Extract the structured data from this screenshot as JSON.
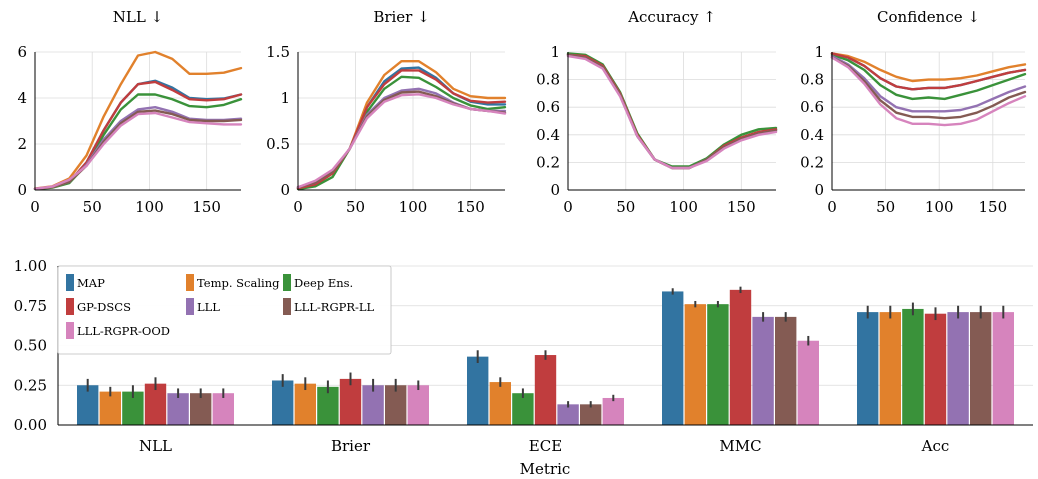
{
  "colors": {
    "MAP": "#3274a1",
    "Temp. Scaling": "#e1812c",
    "Deep Ens.": "#3a923a",
    "GP-DSCS": "#c03d3e",
    "LLL": "#9372b2",
    "LLL-RGPR-LL": "#845b53",
    "LLL-RGPR-OOD": "#d684bd"
  },
  "chart_data": [
    {
      "type": "line",
      "title": "NLL ↓",
      "xlim": [
        0,
        180
      ],
      "ylim": [
        0,
        6
      ],
      "xticks": [
        0,
        50,
        100,
        150
      ],
      "yticks": [
        0,
        2,
        4,
        6
      ],
      "x": [
        0,
        15,
        30,
        45,
        60,
        75,
        90,
        105,
        120,
        135,
        150,
        165,
        180
      ],
      "series": [
        {
          "name": "MAP",
          "values": [
            0.05,
            0.12,
            0.35,
            1.2,
            2.6,
            3.8,
            4.6,
            4.75,
            4.45,
            4.0,
            3.95,
            3.98,
            4.15
          ]
        },
        {
          "name": "Temp. Scaling",
          "values": [
            0.06,
            0.16,
            0.5,
            1.5,
            3.2,
            4.6,
            5.85,
            6.0,
            5.7,
            5.05,
            5.05,
            5.1,
            5.3
          ]
        },
        {
          "name": "Deep Ens.",
          "values": [
            0.04,
            0.1,
            0.3,
            1.1,
            2.4,
            3.5,
            4.15,
            4.15,
            3.95,
            3.65,
            3.6,
            3.7,
            3.95
          ]
        },
        {
          "name": "GP-DSCS",
          "values": [
            0.05,
            0.12,
            0.35,
            1.2,
            2.6,
            3.8,
            4.6,
            4.7,
            4.35,
            3.95,
            3.9,
            3.95,
            4.15
          ]
        },
        {
          "name": "LLL",
          "values": [
            0.05,
            0.13,
            0.35,
            1.1,
            2.2,
            3.0,
            3.5,
            3.6,
            3.4,
            3.1,
            3.05,
            3.05,
            3.1
          ]
        },
        {
          "name": "LLL-RGPR-LL",
          "values": [
            0.05,
            0.13,
            0.35,
            1.05,
            2.1,
            2.9,
            3.4,
            3.45,
            3.3,
            3.05,
            3.0,
            3.0,
            3.05
          ]
        },
        {
          "name": "LLL-RGPR-OOD",
          "values": [
            0.05,
            0.15,
            0.45,
            1.05,
            2.0,
            2.8,
            3.3,
            3.35,
            3.15,
            2.95,
            2.9,
            2.85,
            2.85
          ]
        }
      ]
    },
    {
      "type": "line",
      "title": "Brier ↓",
      "xlim": [
        0,
        180
      ],
      "ylim": [
        0,
        1.5
      ],
      "xticks": [
        0,
        50,
        100,
        150
      ],
      "yticks": [
        0,
        0.5,
        1,
        1.5
      ],
      "ytick_labels": [
        "0",
        "0.5",
        "1",
        "1.5"
      ],
      "x": [
        0,
        15,
        30,
        45,
        60,
        75,
        90,
        105,
        120,
        135,
        150,
        165,
        180
      ],
      "series": [
        {
          "name": "MAP",
          "values": [
            0.02,
            0.06,
            0.18,
            0.45,
            0.9,
            1.18,
            1.32,
            1.33,
            1.22,
            1.05,
            0.96,
            0.93,
            0.93
          ]
        },
        {
          "name": "Temp. Scaling",
          "values": [
            0.02,
            0.06,
            0.18,
            0.45,
            0.95,
            1.25,
            1.4,
            1.4,
            1.28,
            1.1,
            1.02,
            1.0,
            1.0
          ]
        },
        {
          "name": "Deep Ens.",
          "values": [
            0.01,
            0.04,
            0.14,
            0.45,
            0.85,
            1.1,
            1.23,
            1.22,
            1.12,
            1.0,
            0.92,
            0.88,
            0.9
          ]
        },
        {
          "name": "GP-DSCS",
          "values": [
            0.02,
            0.06,
            0.18,
            0.45,
            0.9,
            1.15,
            1.3,
            1.3,
            1.2,
            1.05,
            0.97,
            0.95,
            0.96
          ]
        },
        {
          "name": "LLL",
          "values": [
            0.03,
            0.08,
            0.2,
            0.45,
            0.82,
            1.0,
            1.08,
            1.1,
            1.05,
            0.95,
            0.88,
            0.86,
            0.86
          ]
        },
        {
          "name": "LLL-RGPR-LL",
          "values": [
            0.03,
            0.08,
            0.2,
            0.45,
            0.8,
            0.98,
            1.06,
            1.07,
            1.02,
            0.94,
            0.88,
            0.86,
            0.84
          ]
        },
        {
          "name": "LLL-RGPR-OOD",
          "values": [
            0.03,
            0.1,
            0.22,
            0.45,
            0.78,
            0.96,
            1.03,
            1.04,
            1.0,
            0.93,
            0.88,
            0.86,
            0.83
          ]
        }
      ]
    },
    {
      "type": "line",
      "title": "Accuracy ↑",
      "xlim": [
        0,
        180
      ],
      "ylim": [
        0,
        1
      ],
      "xticks": [
        0,
        50,
        100,
        150
      ],
      "yticks": [
        0,
        0.2,
        0.4,
        0.6,
        0.8,
        1
      ],
      "ytick_labels": [
        "0",
        "0.2",
        "0.4",
        "0.6",
        "0.8",
        "1"
      ],
      "x": [
        0,
        15,
        30,
        45,
        60,
        75,
        90,
        105,
        120,
        135,
        150,
        165,
        180
      ],
      "series": [
        {
          "name": "MAP",
          "values": [
            0.98,
            0.97,
            0.9,
            0.7,
            0.4,
            0.22,
            0.16,
            0.16,
            0.22,
            0.32,
            0.38,
            0.42,
            0.44
          ]
        },
        {
          "name": "Temp. Scaling",
          "values": [
            0.98,
            0.97,
            0.9,
            0.7,
            0.4,
            0.22,
            0.16,
            0.16,
            0.22,
            0.32,
            0.38,
            0.42,
            0.44
          ]
        },
        {
          "name": "Deep Ens.",
          "values": [
            0.99,
            0.98,
            0.91,
            0.71,
            0.41,
            0.22,
            0.17,
            0.17,
            0.23,
            0.33,
            0.4,
            0.44,
            0.45
          ]
        },
        {
          "name": "GP-DSCS",
          "values": [
            0.98,
            0.97,
            0.9,
            0.7,
            0.4,
            0.22,
            0.16,
            0.16,
            0.22,
            0.32,
            0.38,
            0.42,
            0.44
          ]
        },
        {
          "name": "LLL",
          "values": [
            0.98,
            0.96,
            0.89,
            0.69,
            0.39,
            0.22,
            0.16,
            0.16,
            0.22,
            0.31,
            0.37,
            0.41,
            0.43
          ]
        },
        {
          "name": "LLL-RGPR-LL",
          "values": [
            0.98,
            0.96,
            0.89,
            0.69,
            0.39,
            0.22,
            0.16,
            0.16,
            0.22,
            0.31,
            0.37,
            0.41,
            0.43
          ]
        },
        {
          "name": "LLL-RGPR-OOD",
          "values": [
            0.97,
            0.95,
            0.88,
            0.68,
            0.39,
            0.22,
            0.16,
            0.16,
            0.21,
            0.3,
            0.36,
            0.4,
            0.42
          ]
        }
      ]
    },
    {
      "type": "line",
      "title": "Confidence ↓",
      "xlim": [
        0,
        180
      ],
      "ylim": [
        0,
        1
      ],
      "xticks": [
        0,
        50,
        100,
        150
      ],
      "yticks": [
        0,
        0.2,
        0.4,
        0.6,
        0.8,
        1
      ],
      "ytick_labels": [
        "0",
        "0.2",
        "0.4",
        "0.6",
        "0.8",
        "1"
      ],
      "x": [
        0,
        15,
        30,
        45,
        60,
        75,
        90,
        105,
        120,
        135,
        150,
        165,
        180
      ],
      "series": [
        {
          "name": "MAP",
          "values": [
            0.99,
            0.96,
            0.9,
            0.81,
            0.75,
            0.73,
            0.74,
            0.74,
            0.76,
            0.79,
            0.82,
            0.85,
            0.87
          ]
        },
        {
          "name": "Temp. Scaling",
          "values": [
            0.99,
            0.97,
            0.93,
            0.87,
            0.82,
            0.79,
            0.8,
            0.8,
            0.81,
            0.83,
            0.86,
            0.89,
            0.91
          ]
        },
        {
          "name": "Deep Ens.",
          "values": [
            0.98,
            0.94,
            0.87,
            0.76,
            0.69,
            0.66,
            0.67,
            0.66,
            0.69,
            0.72,
            0.76,
            0.8,
            0.84
          ]
        },
        {
          "name": "GP-DSCS",
          "values": [
            0.99,
            0.96,
            0.9,
            0.81,
            0.75,
            0.73,
            0.74,
            0.74,
            0.76,
            0.79,
            0.82,
            0.85,
            0.87
          ]
        },
        {
          "name": "LLL",
          "values": [
            0.97,
            0.91,
            0.81,
            0.68,
            0.6,
            0.57,
            0.57,
            0.57,
            0.58,
            0.61,
            0.66,
            0.71,
            0.75
          ]
        },
        {
          "name": "LLL-RGPR-LL",
          "values": [
            0.96,
            0.9,
            0.79,
            0.65,
            0.56,
            0.53,
            0.53,
            0.52,
            0.53,
            0.56,
            0.61,
            0.67,
            0.71
          ]
        },
        {
          "name": "LLL-RGPR-OOD",
          "values": [
            0.96,
            0.89,
            0.77,
            0.62,
            0.52,
            0.48,
            0.48,
            0.47,
            0.48,
            0.51,
            0.57,
            0.63,
            0.68
          ]
        }
      ]
    },
    {
      "type": "bar",
      "xlabel": "Metric",
      "ylim": [
        0,
        1
      ],
      "yticks": [
        0,
        0.25,
        0.5,
        0.75,
        1.0
      ],
      "ytick_labels": [
        "0.00",
        "0.25",
        "0.50",
        "0.75",
        "1.00"
      ],
      "categories": [
        "NLL",
        "Brier",
        "ECE",
        "MMC",
        "Acc"
      ],
      "legend": "top-left",
      "series": [
        {
          "name": "MAP",
          "values": [
            0.25,
            0.28,
            0.43,
            0.84,
            0.71
          ],
          "errors": [
            0.04,
            0.04,
            0.04,
            0.02,
            0.04
          ]
        },
        {
          "name": "Temp. Scaling",
          "values": [
            0.21,
            0.26,
            0.27,
            0.76,
            0.71
          ],
          "errors": [
            0.03,
            0.04,
            0.03,
            0.02,
            0.04
          ]
        },
        {
          "name": "Deep Ens.",
          "values": [
            0.21,
            0.24,
            0.2,
            0.76,
            0.73
          ],
          "errors": [
            0.04,
            0.04,
            0.03,
            0.02,
            0.04
          ]
        },
        {
          "name": "GP-DSCS",
          "values": [
            0.26,
            0.29,
            0.44,
            0.85,
            0.7
          ],
          "errors": [
            0.04,
            0.04,
            0.03,
            0.02,
            0.04
          ]
        },
        {
          "name": "LLL",
          "values": [
            0.2,
            0.25,
            0.13,
            0.68,
            0.71
          ],
          "errors": [
            0.03,
            0.04,
            0.02,
            0.03,
            0.04
          ]
        },
        {
          "name": "LLL-RGPR-LL",
          "values": [
            0.2,
            0.25,
            0.13,
            0.68,
            0.71
          ],
          "errors": [
            0.03,
            0.04,
            0.02,
            0.03,
            0.04
          ]
        },
        {
          "name": "LLL-RGPR-OOD",
          "values": [
            0.2,
            0.25,
            0.17,
            0.53,
            0.71
          ],
          "errors": [
            0.03,
            0.03,
            0.02,
            0.03,
            0.04
          ]
        }
      ]
    }
  ]
}
